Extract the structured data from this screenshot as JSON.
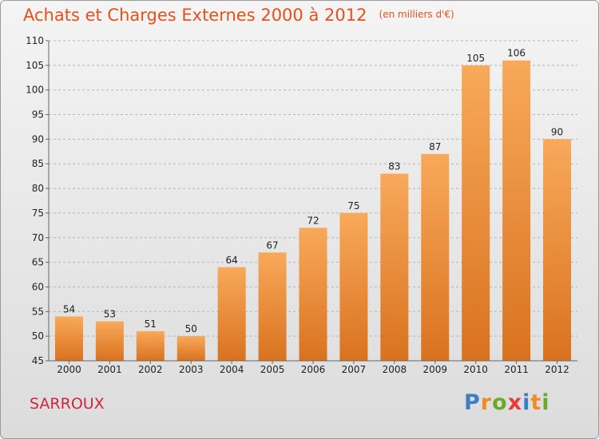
{
  "header": {
    "title": "Achats et Charges Externes 2000 à 2012",
    "unit": "(en milliers d'€)"
  },
  "footer": {
    "commune": "SARROUX",
    "logo_letters": [
      "P",
      "r",
      "o",
      "x",
      "i",
      "t",
      "i"
    ]
  },
  "colors": {
    "title": "#e8501a",
    "commune": "#d0253f",
    "bar_light": "#f8a95a",
    "bar_dark": "#d9721f",
    "logo": [
      "#3a7fc4",
      "#f08a24",
      "#6aaa2a",
      "#e63b3b",
      "#3a7fc4",
      "#f08a24",
      "#6aaa2a"
    ]
  },
  "chart_data": {
    "type": "bar",
    "categories": [
      "2000",
      "2001",
      "2002",
      "2003",
      "2004",
      "2005",
      "2006",
      "2007",
      "2008",
      "2009",
      "2010",
      "2011",
      "2012"
    ],
    "values": [
      54,
      53,
      51,
      50,
      64,
      67,
      72,
      75,
      83,
      87,
      105,
      106,
      90
    ],
    "ylim": [
      45,
      110
    ],
    "yticks": [
      45,
      50,
      55,
      60,
      65,
      70,
      75,
      80,
      85,
      90,
      95,
      100,
      105,
      110
    ],
    "grid": "horizontal-dashed",
    "legend": "none"
  }
}
